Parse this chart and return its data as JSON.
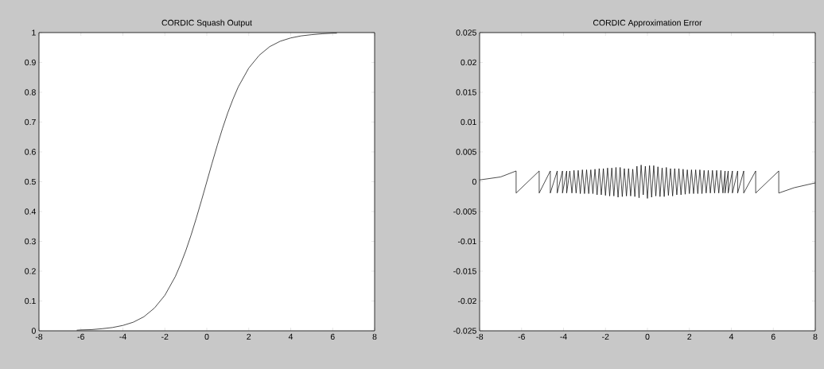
{
  "chart_data": [
    {
      "type": "line",
      "title": "CORDIC Squash Output",
      "color": "#000000",
      "x": [
        -6.2,
        -6,
        -5.5,
        -5,
        -4.5,
        -4,
        -3.5,
        -3,
        -2.5,
        -2,
        -1.5,
        -1.25,
        -1,
        -0.75,
        -0.5,
        -0.25,
        0,
        0.25,
        0.5,
        0.75,
        1,
        1.25,
        1.5,
        2,
        2.5,
        3,
        3.5,
        4,
        4.5,
        5,
        5.5,
        6,
        6.2
      ],
      "values": [
        0.002,
        0.003,
        0.004,
        0.007,
        0.011,
        0.018,
        0.029,
        0.047,
        0.076,
        0.119,
        0.182,
        0.223,
        0.269,
        0.321,
        0.378,
        0.438,
        0.5,
        0.562,
        0.622,
        0.679,
        0.731,
        0.777,
        0.818,
        0.881,
        0.924,
        0.953,
        0.971,
        0.982,
        0.989,
        0.993,
        0.996,
        0.998,
        0.998
      ],
      "xlim": [
        -8,
        8
      ],
      "ylim": [
        0,
        1
      ],
      "xticks": [
        -8,
        -6,
        -4,
        -2,
        0,
        2,
        4,
        6,
        8
      ],
      "yticks": [
        0,
        0.1,
        0.2,
        0.3,
        0.4,
        0.5,
        0.6,
        0.7,
        0.8,
        0.9,
        1
      ]
    },
    {
      "type": "line",
      "title": "CORDIC Approximation Error",
      "color": "#000000",
      "x": [
        -8,
        -7,
        -6.26,
        -6.26,
        -5.16,
        -5.16,
        -4.63,
        -4.63,
        -4.3,
        -4.3,
        -4.05,
        -4.05,
        -3.85,
        -3.85,
        -3.7,
        -3.6,
        -3.5,
        -3.4,
        -3.3,
        -3.2,
        -3.1,
        -3.0,
        -2.9,
        -2.8,
        -2.7,
        -2.6,
        -2.5,
        -2.4,
        -2.3,
        -2.2,
        -2.1,
        -2.0,
        -1.9,
        -1.8,
        -1.7,
        -1.6,
        -1.5,
        -1.4,
        -1.3,
        -1.2,
        -1.1,
        -1.0,
        -0.9,
        -0.8,
        -0.7,
        -0.6,
        -0.5,
        -0.4,
        -0.3,
        -0.2,
        -0.1,
        0.0,
        0.1,
        0.2,
        0.3,
        0.4,
        0.5,
        0.6,
        0.7,
        0.8,
        0.9,
        1.0,
        1.1,
        1.2,
        1.3,
        1.4,
        1.5,
        1.6,
        1.7,
        1.8,
        1.9,
        2.0,
        2.1,
        2.2,
        2.3,
        2.4,
        2.5,
        2.6,
        2.7,
        2.8,
        2.9,
        3.0,
        3.1,
        3.2,
        3.3,
        3.4,
        3.5,
        3.6,
        3.7,
        3.7,
        3.85,
        3.85,
        4.05,
        4.05,
        4.3,
        4.3,
        4.59,
        4.59,
        5.16,
        5.16,
        6.26,
        6.26,
        7,
        8
      ],
      "values": [
        0.0003,
        0.0008,
        0.0018,
        -0.0019,
        0.0018,
        -0.0019,
        0.0018,
        -0.0019,
        0.0018,
        -0.0019,
        0.0018,
        -0.0019,
        0.0018,
        -0.0019,
        0.0018,
        -0.0019,
        0.0019,
        -0.0019,
        0.0019,
        -0.002,
        0.002,
        -0.002,
        0.002,
        -0.002,
        0.002,
        -0.002,
        0.0021,
        -0.0022,
        0.0022,
        -0.0022,
        0.0022,
        -0.0023,
        0.0023,
        -0.0024,
        0.0023,
        -0.0024,
        0.0024,
        -0.0026,
        0.0024,
        -0.0025,
        0.0022,
        -0.0024,
        0.0022,
        -0.0024,
        0.0021,
        -0.0025,
        0.0026,
        -0.0027,
        0.0028,
        -0.0022,
        0.0026,
        -0.0028,
        0.0027,
        -0.0026,
        0.0027,
        -0.0024,
        0.0025,
        -0.0025,
        0.0023,
        -0.0025,
        0.0024,
        -0.0023,
        0.0022,
        -0.0024,
        0.0022,
        -0.0022,
        0.0022,
        -0.0022,
        0.0021,
        -0.0021,
        0.002,
        -0.002,
        0.002,
        -0.002,
        0.002,
        -0.002,
        0.002,
        -0.002,
        0.0019,
        -0.0019,
        0.0019,
        -0.0019,
        0.0019,
        -0.0019,
        0.0019,
        -0.0019,
        0.0019,
        -0.0019,
        0.0018,
        -0.0019,
        0.0018,
        -0.0019,
        0.0018,
        -0.0019,
        0.0018,
        -0.0019,
        0.0018,
        -0.0019,
        0.0018,
        -0.0019,
        0.0018,
        -0.0019,
        -0.001,
        -0.0002
      ],
      "xlim": [
        -8,
        8
      ],
      "ylim": [
        -0.025,
        0.025
      ],
      "xticks": [
        -8,
        -6,
        -4,
        -2,
        0,
        2,
        4,
        6,
        8
      ],
      "yticks": [
        -0.025,
        -0.02,
        -0.015,
        -0.01,
        -0.005,
        0,
        0.005,
        0.01,
        0.015,
        0.02,
        0.025
      ]
    }
  ]
}
